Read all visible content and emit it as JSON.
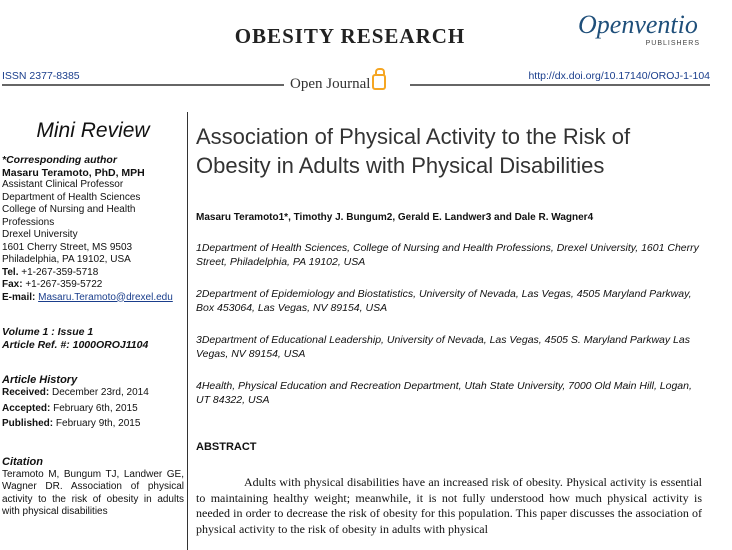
{
  "header": {
    "journal_name": "OBESITY RESEARCH",
    "publisher_name": "Openventio",
    "publisher_sub": "PUBLISHERS",
    "issn": "ISSN 2377-8385",
    "open_journal": "Open Journal",
    "doi": "http://dx.doi.org/10.17140/OROJ-1-104"
  },
  "sidebar": {
    "section_type": "Mini Review",
    "corresponding_label": "*Corresponding author",
    "author_name": "Masaru Teramoto, PhD, MPH",
    "address_lines": [
      "Assistant Clinical Professor",
      "Department of Health Sciences",
      "College of Nursing and Health",
      "Professions",
      "Drexel University",
      "1601 Cherry Street, MS 9503",
      "Philadelphia, PA 19102, USA"
    ],
    "tel_label": "Tel.",
    "tel_value": " +1-267-359-5718",
    "fax_label": "Fax:",
    "fax_value": " +1-267-359-5722",
    "email_label": "E-mail:",
    "email_value": "Masaru.Teramoto@drexel.edu",
    "volume": "Volume 1 : Issue 1",
    "article_ref": "Article Ref. #: 1000OROJ1104",
    "history_heading": "Article History",
    "received_label": "Received:",
    "received_value": " December 23rd, 2014",
    "accepted_label": "Accepted:",
    "accepted_value": " February 6th, 2015",
    "published_label": "Published:",
    "published_value": " February 9th, 2015",
    "citation_heading": "Citation",
    "citation_text": "Teramoto M, Bungum TJ, Landwer GE, Wagner DR. Association of physical activity to the risk of obesity in adults with physical disabilities"
  },
  "main": {
    "title": "Association of Physical Activity to the Risk of Obesity in Adults with Physical Disabilities",
    "authors": "Masaru Teramoto1*, Timothy J. Bungum2, Gerald E. Landwer3 and Dale R. Wagner4",
    "affiliations": [
      "1Department of Health Sciences, College of Nursing and Health Professions, Drexel University, 1601 Cherry Street, Philadelphia, PA 19102, USA",
      "2Department of Epidemiology and Biostatistics, University of Nevada, Las Vegas, 4505 Maryland Parkway, Box 453064, Las Vegas, NV 89154, USA",
      "3Department of Educational Leadership, University of Nevada, Las Vegas, 4505 S. Maryland Parkway Las Vegas, NV 89154, USA",
      "4Health, Physical Education and Recreation Department, Utah State University, 7000 Old Main Hill, Logan, UT 84322, USA"
    ],
    "abstract_heading": "ABSTRACT",
    "abstract_text": "Adults with physical disabilities have an increased risk of obesity. Physical activity is essential to maintaining healthy weight; meanwhile, it is not fully understood how much physical activity is needed in order to decrease the risk of obesity for this population. This paper discusses the association of physical activity to the risk of obesity in adults with physical"
  },
  "colors": {
    "link": "#1a3e8c",
    "publisher": "#1f4f7a",
    "lock": "#f5a623"
  }
}
